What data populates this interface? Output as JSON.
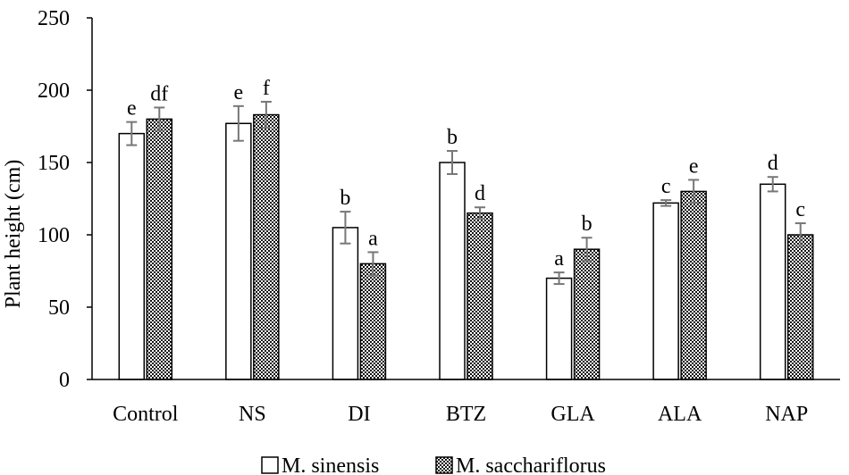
{
  "chart_data": {
    "type": "bar",
    "title": "",
    "xlabel": "",
    "ylabel": "Plant height (cm)",
    "ylim": [
      0,
      250
    ],
    "yticks": [
      "0",
      "50",
      "100",
      "150",
      "200",
      "250"
    ],
    "categories": [
      "Control",
      "NS",
      "DI",
      "BTZ",
      "GLA",
      "ALA",
      "NAP"
    ],
    "series": [
      {
        "name": "M. sinensis",
        "values": [
          170,
          177,
          105,
          150,
          70,
          122,
          135
        ],
        "errors": [
          8,
          12,
          11,
          8,
          4,
          2,
          5
        ],
        "labels": [
          "e",
          "e",
          "b",
          "b",
          "a",
          "c",
          "d"
        ]
      },
      {
        "name": "M. sacchariflorus",
        "values": [
          180,
          183,
          80,
          115,
          90,
          130,
          100
        ],
        "errors": [
          8,
          9,
          8,
          4,
          8,
          8,
          8
        ],
        "labels": [
          "df",
          "f",
          "a",
          "d",
          "b",
          "e",
          "c"
        ]
      }
    ],
    "legend_position": "bottom"
  }
}
